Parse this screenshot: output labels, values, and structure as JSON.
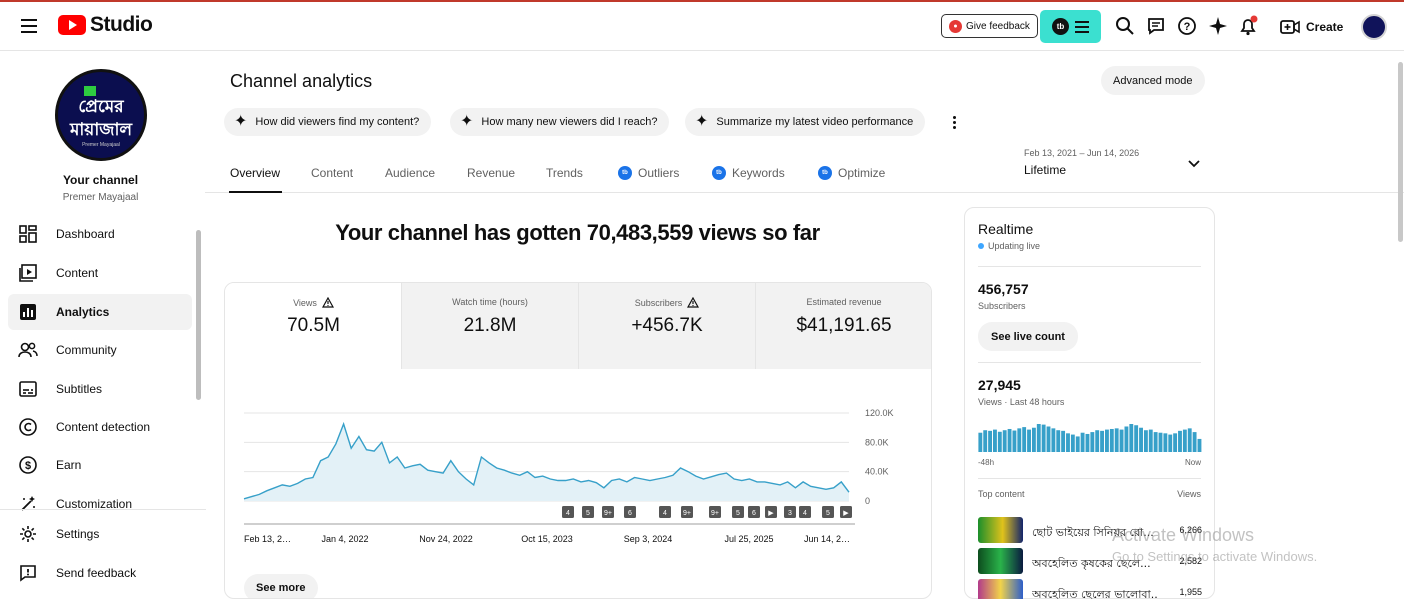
{
  "app": {
    "title": "Studio"
  },
  "topbar": {
    "give_feedback": "Give feedback",
    "create_label": "Create",
    "icons": [
      "search-icon",
      "messages-icon",
      "help-icon",
      "sparkle-icon",
      "notifications-icon",
      "create-icon"
    ]
  },
  "sidebar": {
    "your_channel": "Your channel",
    "channel_name": "Premer Mayajaal",
    "avatar_text_1": "প্রেমের",
    "avatar_text_2": "মায়াজাল",
    "avatar_text_3": "Premer Mayajaal",
    "items": [
      {
        "label": "Dashboard",
        "icon": "dashboard-icon"
      },
      {
        "label": "Content",
        "icon": "content-icon"
      },
      {
        "label": "Analytics",
        "icon": "analytics-icon",
        "active": true
      },
      {
        "label": "Community",
        "icon": "community-icon"
      },
      {
        "label": "Subtitles",
        "icon": "subtitles-icon"
      },
      {
        "label": "Content detection",
        "icon": "copyright-icon"
      },
      {
        "label": "Earn",
        "icon": "earn-icon"
      },
      {
        "label": "Customization",
        "icon": "customization-icon"
      }
    ],
    "bottom": [
      {
        "label": "Settings",
        "icon": "settings-icon"
      },
      {
        "label": "Send feedback",
        "icon": "feedback-icon"
      }
    ]
  },
  "main": {
    "title": "Channel analytics",
    "advanced_mode": "Advanced mode",
    "chips": [
      "How did viewers find my content?",
      "How many new viewers did I reach?",
      "Summarize my latest video performance"
    ],
    "tabs": [
      "Overview",
      "Content",
      "Audience",
      "Revenue",
      "Trends",
      "Outliers",
      "Keywords",
      "Optimize"
    ],
    "date_range": "Feb 13, 2021 – Jun 14, 2026",
    "date_period": "Lifetime",
    "headline": "Your channel has gotten 70,483,559 views so far",
    "metrics": [
      {
        "label": "Views",
        "value": "70.5M",
        "warning": true
      },
      {
        "label": "Watch time (hours)",
        "value": "21.8M",
        "warning": false
      },
      {
        "label": "Subscribers",
        "value": "+456.7K",
        "warning": true
      },
      {
        "label": "Estimated revenue",
        "value": "$41,191.65",
        "warning": false
      }
    ],
    "see_more": "See more"
  },
  "chart_data": {
    "type": "area",
    "title": "",
    "xlabel": "",
    "ylabel": "",
    "x_ticks": [
      "Feb 13, 2…",
      "Jan 4, 2022",
      "Nov 24, 2022",
      "Oct 15, 2023",
      "Sep 3, 2024",
      "Jul 25, 2025",
      "Jun 14, 2…"
    ],
    "y_ticks": [
      "120.0K",
      "80.0K",
      "40.0K",
      "0"
    ],
    "ylim": [
      0,
      120000
    ],
    "grid": true,
    "color": "#37a0c9",
    "series": [
      {
        "values": [
          3000,
          6000,
          9000,
          14000,
          18000,
          22000,
          20000,
          24000,
          30000,
          32000,
          55000,
          60000,
          78000,
          105000,
          72000,
          88000,
          70000,
          68000,
          80000,
          52000,
          60000,
          45000,
          48000,
          50000,
          42000,
          40000,
          38000,
          55000,
          40000,
          30000,
          22000,
          60000,
          52000,
          45000,
          42000,
          38000,
          35000,
          40000,
          32000,
          34000,
          30000,
          28000,
          28000,
          30000,
          26000,
          28000,
          25000,
          18000,
          28000,
          30000,
          26000,
          32000,
          30000,
          28000,
          30000,
          32000,
          35000,
          45000,
          40000,
          34000,
          30000,
          33000,
          36000,
          38000,
          30000,
          28000,
          30000,
          26000,
          26000,
          24000,
          22000,
          26000,
          18000,
          26000,
          20000,
          18000,
          16000,
          18000,
          26000,
          12000
        ]
      }
    ],
    "annotations": [
      "4",
      "5",
      "9+",
      "6",
      "4",
      "9+",
      "9+",
      "5",
      "6",
      "▶",
      "3",
      "4",
      "5",
      "▶"
    ]
  },
  "realtime": {
    "title": "Realtime",
    "status": "Updating live",
    "subscribers_value": "456,757",
    "subscribers_label": "Subscribers",
    "see_live_count": "See live count",
    "views_value": "27,945",
    "views_label": "Views · Last 48 hours",
    "axis_start": "-48h",
    "axis_end": "Now",
    "top_content_label": "Top content",
    "views_col": "Views",
    "bars": [
      620,
      700,
      680,
      720,
      650,
      700,
      740,
      690,
      760,
      800,
      720,
      780,
      900,
      880,
      820,
      760,
      700,
      680,
      600,
      560,
      500,
      620,
      580,
      640,
      700,
      680,
      720,
      740,
      760,
      720,
      820,
      900,
      860,
      780,
      700,
      720,
      640,
      620,
      600,
      560,
      600,
      680,
      720,
      760,
      640,
      420
    ],
    "top_content": [
      {
        "title": "ছোট ভাইয়ের সিনিয়র রো...",
        "views": "6,266"
      },
      {
        "title": "অবহেলিত কৃষকের ছেলে...",
        "views": "2,582"
      },
      {
        "title": "অবহেলিত ছেলের ভালোবা...",
        "views": "1,955"
      }
    ]
  },
  "watermark": {
    "line1": "Activate Windows",
    "line2": "Go to Settings to activate Windows."
  }
}
